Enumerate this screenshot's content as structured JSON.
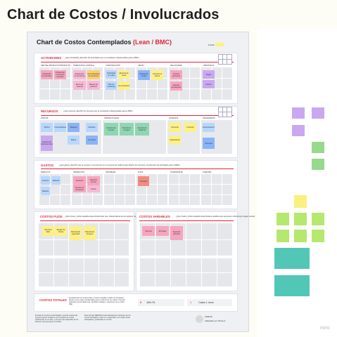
{
  "page": {
    "title": "Chart de Costos / Involucrados"
  },
  "board": {
    "title_main": "Chart de Costos Contemplados ",
    "title_accent": "(Lean / BMC)",
    "dates_label": "Fecha:",
    "sections": {
      "actividades": {
        "label": "ACTIVIDADES",
        "desc": "¿Qué actividades_(Resultar las actividades que se consideran indispensables para el BMC)",
        "columns": [
          "SER DEL PRODUCTO/PRODUCTO",
          "OPERACIÓN LOGÍSTICA",
          "COMUNICACIÓN",
          "VENTA",
          "RELACIONES",
          "ABONOS/CA"
        ],
        "notes": [
          "Desarrollo de prototipo",
          "Producción mínima de prototipo",
          "Adquisición de productos",
          "Comercialización de productos",
          "Envío de material",
          "Manejo de producto",
          "Publicidad en redes",
          "Alianzas de venta",
          "Plan de marketing",
          "Comunicación",
          "Manejo de ventas",
          "Atención al cliente",
          "Servicio postventa",
          "Alianzas estratégicas",
          "Pagos",
          "Cobros"
        ]
      },
      "recursos": {
        "label": "RECURSOS",
        "desc": "¿Qué recursos_(Escribir los recursos que se consideran indispensables para el BMC)",
        "columns": [
          "FÍSICOS",
          "INTELECTUALES",
          "HUMANOS",
          "FINANCIEROS"
        ],
        "notes": [
          "Oficina",
          "Computadoras",
          "Máquina",
          "Espacio de almacenamiento",
          "Software",
          "Licencias",
          "Marca",
          "Servicio de internet",
          "Servicio de energía",
          "Servicio de telefonía",
          "Personal",
          "Capacitación",
          "Inversión",
          "Financiamiento",
          "Personal"
        ]
      },
      "gastos": {
        "label": "GASTOS",
        "desc": "¿Qué gastos_(Escribir qué se compró o se consumió en el momento de realizar para obtener los recursos y la ejecución de actividades para el BMC)",
        "columns": [
          "DIRECTOS",
          "INDIRECTOS",
          "VARIABLES",
          "FIJOS",
          "TRANSPORTE",
          "AGENTES",
          "SUELDOS"
        ],
        "notes": [
          "Insumos",
          "Material",
          "Salarios",
          "Servicios",
          "Materias primas",
          "Servicio de transporte",
          "Renta",
          "Comisión"
        ]
      },
      "fijos": {
        "label": "COSTOS FIJOS",
        "desc": "¿Qué Costos_(Incluir aquellos desembolsos fijos que, independiente de los ingresos, se mantienen)",
        "notes": [
          "Servicios Web",
          "Alquiler de oficina",
          "Material de seguridad",
          "Material de limpieza"
        ]
      },
      "variables": {
        "label": "COSTOS VARIABLES",
        "desc": "¿Qué Costos_(Incluir aquellos desembolsos variables que aumentan o disminuyen según ventas)",
        "notes": [
          "Insumos",
          "Entregas",
          "Segundo ejemplar"
        ]
      },
      "totales": {
        "label": "COSTOS TOTALES",
        "desc": "Agrupamiento de Costos Fijos y Costos Variables, Define la sumatoria tiempo a que están consideradas para el cálculo de los costos. Procurar optimizar enumeradamente, identificar trabajo y soluciones de su obtén (SE)",
        "amount_symbol": "$",
        "amount": "189.75",
        "period_value": "1",
        "period_label": "Cada 1 mes"
      }
    },
    "footer": {
      "left": "El Chart de Costos Contemplados, permite enlazar las mayores partes usadas en el inventario de costos (finalmente) en su plan, y los que más dependan de los diversos recursos para el modelo.",
      "mid": "Este formato ABENO/ha sido diseñado por docentes de los cursos brindados a más en su valoración, los cuales están anticipados y publicados en el sitio.",
      "brand": "CHEOS",
      "credit": "Adaptado por FICsem"
    }
  },
  "right_notes": {
    "colors": [
      "#c9a8f0",
      "#97d98e",
      "#f9f17c",
      "#b5e86f",
      "#53c7b6"
    ]
  },
  "watermark": "miro"
}
